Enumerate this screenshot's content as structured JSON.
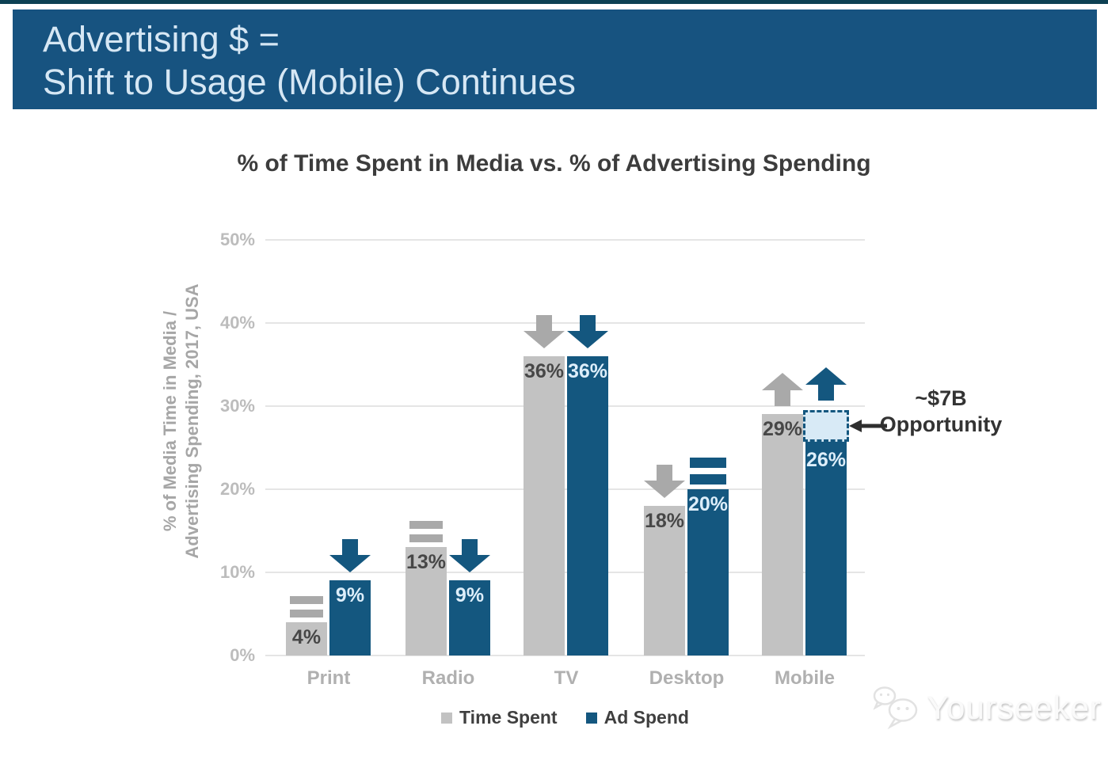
{
  "banner": {
    "line1": "Advertising $ =",
    "line2": "Shift to Usage (Mobile) Continues",
    "bg_color": "#175380"
  },
  "chart_data": {
    "type": "bar",
    "title": "% of Time Spent in Media vs. % of Advertising Spending",
    "ylabel_line1": "% of Media Time in Media /",
    "ylabel_line2": "Advertising Spending, 2017, USA",
    "categories": [
      "Print",
      "Radio",
      "TV",
      "Desktop",
      "Mobile"
    ],
    "series": [
      {
        "name": "Time Spent",
        "color": "#c2c2c2",
        "indicator_color": "#a9a9a9",
        "label_color": "#474747",
        "values": [
          4,
          13,
          36,
          18,
          29
        ],
        "trend": [
          "equal",
          "equal",
          "down",
          "down",
          "up"
        ]
      },
      {
        "name": "Ad Spend",
        "color": "#14577f",
        "indicator_color": "#14577f",
        "label_color": "#ddeefa",
        "values": [
          9,
          9,
          36,
          20,
          26
        ],
        "trend": [
          "down",
          "down",
          "down",
          "equal",
          "up"
        ]
      }
    ],
    "value_suffix": "%",
    "yticks": [
      "0%",
      "10%",
      "20%",
      "30%",
      "40%",
      "50%"
    ],
    "ylim": [
      0,
      50
    ],
    "grid": true,
    "legend_position": "bottom"
  },
  "annotation": {
    "line1": "~$7B",
    "line2": "Opportunity",
    "gap_category": "Mobile",
    "gap_series": "Ad Spend",
    "gap_from_percent": 26,
    "gap_to_percent": 29.5,
    "box_fill": "#d8eaf6",
    "box_border": "#14577f",
    "arrow_color": "#2e2e2e"
  },
  "watermark": {
    "text": "Yourseeker"
  }
}
